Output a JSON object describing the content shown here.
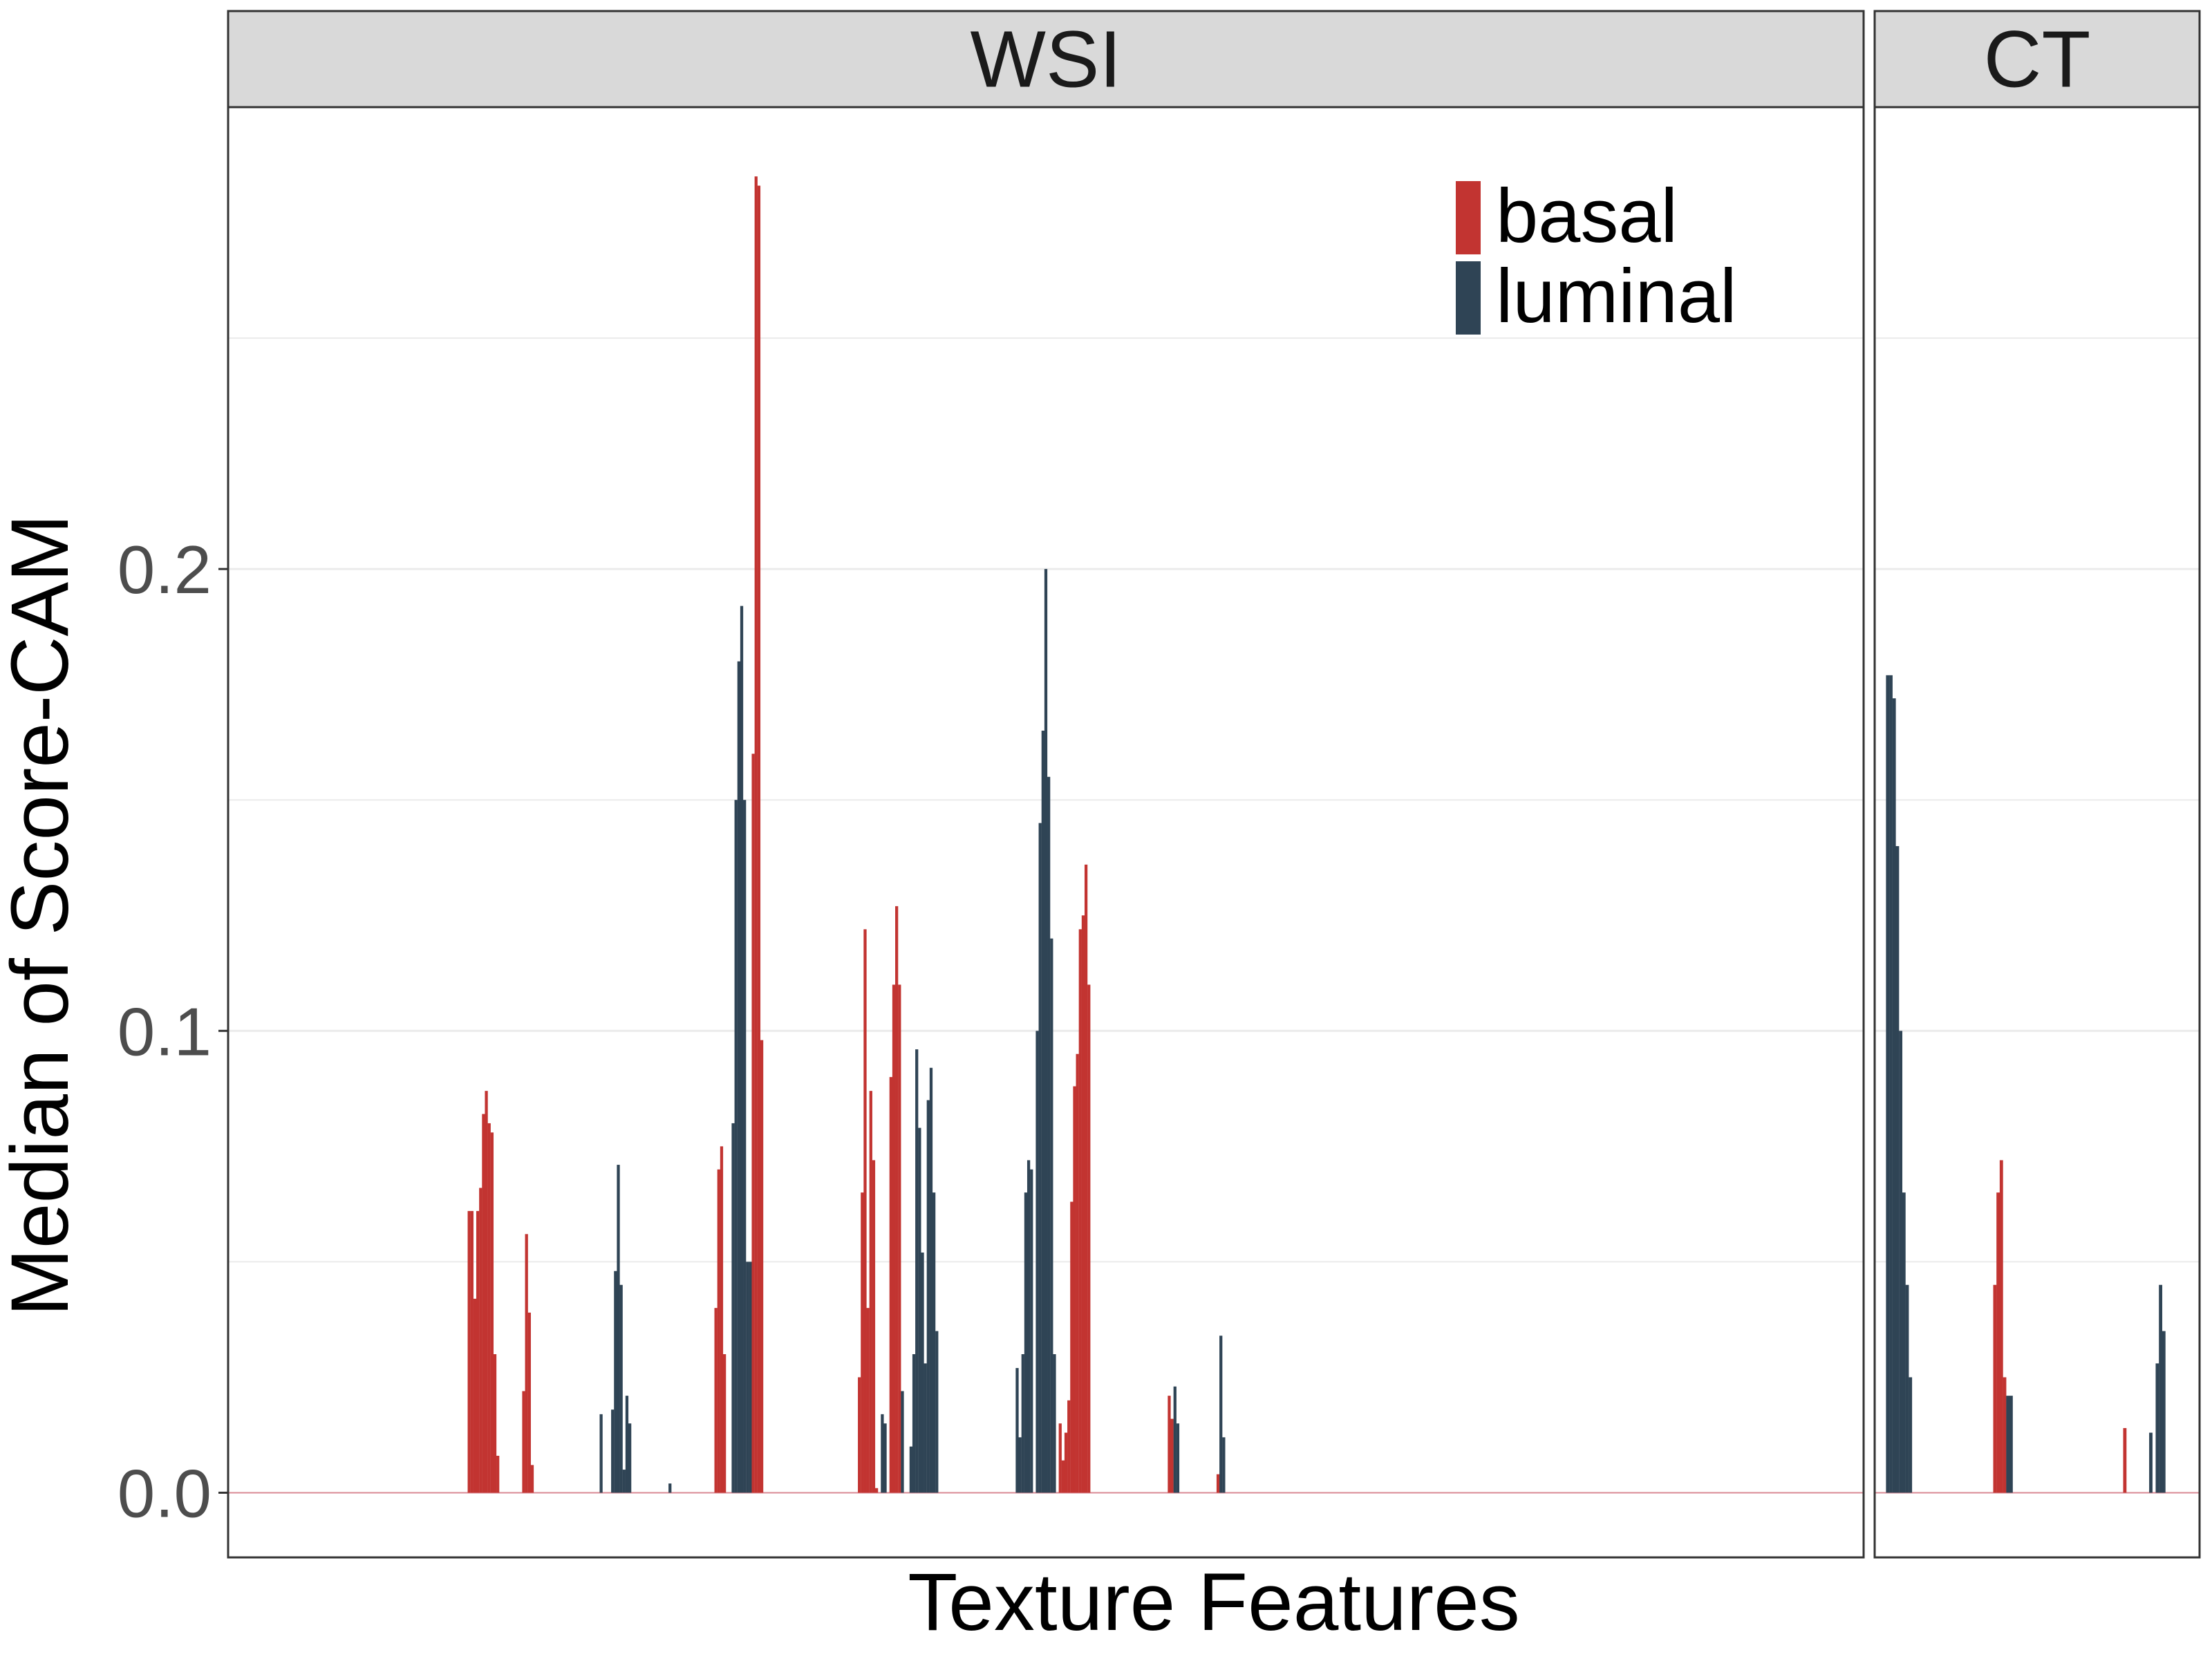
{
  "chart_data": {
    "type": "bar",
    "facets": [
      {
        "name": "WSI",
        "x_range": [
          0,
          570
        ],
        "bars": [
          {
            "x": 84,
            "v": 0.061,
            "s": "basal"
          },
          {
            "x": 85,
            "v": 0.061,
            "s": "basal"
          },
          {
            "x": 86,
            "v": 0.042,
            "s": "basal"
          },
          {
            "x": 87,
            "v": 0.061,
            "s": "basal"
          },
          {
            "x": 88,
            "v": 0.066,
            "s": "basal"
          },
          {
            "x": 89,
            "v": 0.082,
            "s": "basal"
          },
          {
            "x": 90,
            "v": 0.087,
            "s": "basal"
          },
          {
            "x": 91,
            "v": 0.08,
            "s": "basal"
          },
          {
            "x": 92,
            "v": 0.078,
            "s": "basal"
          },
          {
            "x": 93,
            "v": 0.03,
            "s": "basal"
          },
          {
            "x": 94,
            "v": 0.008,
            "s": "basal"
          },
          {
            "x": 103,
            "v": 0.022,
            "s": "basal"
          },
          {
            "x": 104,
            "v": 0.056,
            "s": "basal"
          },
          {
            "x": 105,
            "v": 0.039,
            "s": "basal"
          },
          {
            "x": 106,
            "v": 0.006,
            "s": "basal"
          },
          {
            "x": 130,
            "v": 0.017,
            "s": "luminal"
          },
          {
            "x": 134,
            "v": 0.018,
            "s": "luminal"
          },
          {
            "x": 135,
            "v": 0.048,
            "s": "luminal"
          },
          {
            "x": 136,
            "v": 0.071,
            "s": "luminal"
          },
          {
            "x": 137,
            "v": 0.045,
            "s": "luminal"
          },
          {
            "x": 138,
            "v": 0.005,
            "s": "luminal"
          },
          {
            "x": 139,
            "v": 0.021,
            "s": "luminal"
          },
          {
            "x": 140,
            "v": 0.015,
            "s": "luminal"
          },
          {
            "x": 154,
            "v": 0.002,
            "s": "luminal"
          },
          {
            "x": 170,
            "v": 0.04,
            "s": "basal"
          },
          {
            "x": 171,
            "v": 0.07,
            "s": "basal"
          },
          {
            "x": 172,
            "v": 0.075,
            "s": "basal"
          },
          {
            "x": 173,
            "v": 0.03,
            "s": "basal"
          },
          {
            "x": 176,
            "v": 0.08,
            "s": "luminal"
          },
          {
            "x": 177,
            "v": 0.15,
            "s": "luminal"
          },
          {
            "x": 178,
            "v": 0.18,
            "s": "luminal"
          },
          {
            "x": 179,
            "v": 0.192,
            "s": "luminal"
          },
          {
            "x": 180,
            "v": 0.15,
            "s": "luminal"
          },
          {
            "x": 181,
            "v": 0.05,
            "s": "luminal"
          },
          {
            "x": 182,
            "v": 0.05,
            "s": "luminal"
          },
          {
            "x": 183,
            "v": 0.16,
            "s": "basal"
          },
          {
            "x": 184,
            "v": 0.285,
            "s": "basal"
          },
          {
            "x": 185,
            "v": 0.283,
            "s": "basal"
          },
          {
            "x": 186,
            "v": 0.098,
            "s": "basal"
          },
          {
            "x": 220,
            "v": 0.025,
            "s": "basal"
          },
          {
            "x": 221,
            "v": 0.065,
            "s": "basal"
          },
          {
            "x": 222,
            "v": 0.122,
            "s": "basal"
          },
          {
            "x": 223,
            "v": 0.04,
            "s": "basal"
          },
          {
            "x": 224,
            "v": 0.087,
            "s": "basal"
          },
          {
            "x": 225,
            "v": 0.072,
            "s": "basal"
          },
          {
            "x": 226,
            "v": 0.001,
            "s": "basal"
          },
          {
            "x": 228,
            "v": 0.017,
            "s": "luminal"
          },
          {
            "x": 229,
            "v": 0.015,
            "s": "luminal"
          },
          {
            "x": 231,
            "v": 0.09,
            "s": "basal"
          },
          {
            "x": 232,
            "v": 0.11,
            "s": "basal"
          },
          {
            "x": 233,
            "v": 0.127,
            "s": "basal"
          },
          {
            "x": 234,
            "v": 0.11,
            "s": "basal"
          },
          {
            "x": 235,
            "v": 0.022,
            "s": "luminal"
          },
          {
            "x": 238,
            "v": 0.01,
            "s": "luminal"
          },
          {
            "x": 239,
            "v": 0.03,
            "s": "luminal"
          },
          {
            "x": 240,
            "v": 0.096,
            "s": "luminal"
          },
          {
            "x": 241,
            "v": 0.079,
            "s": "luminal"
          },
          {
            "x": 242,
            "v": 0.052,
            "s": "luminal"
          },
          {
            "x": 243,
            "v": 0.028,
            "s": "luminal"
          },
          {
            "x": 244,
            "v": 0.085,
            "s": "luminal"
          },
          {
            "x": 245,
            "v": 0.092,
            "s": "luminal"
          },
          {
            "x": 246,
            "v": 0.065,
            "s": "luminal"
          },
          {
            "x": 247,
            "v": 0.035,
            "s": "luminal"
          },
          {
            "x": 275,
            "v": 0.027,
            "s": "luminal"
          },
          {
            "x": 276,
            "v": 0.012,
            "s": "luminal"
          },
          {
            "x": 277,
            "v": 0.03,
            "s": "luminal"
          },
          {
            "x": 278,
            "v": 0.065,
            "s": "luminal"
          },
          {
            "x": 279,
            "v": 0.072,
            "s": "luminal"
          },
          {
            "x": 280,
            "v": 0.07,
            "s": "luminal"
          },
          {
            "x": 282,
            "v": 0.1,
            "s": "luminal"
          },
          {
            "x": 283,
            "v": 0.145,
            "s": "luminal"
          },
          {
            "x": 284,
            "v": 0.165,
            "s": "luminal"
          },
          {
            "x": 285,
            "v": 0.2,
            "s": "luminal"
          },
          {
            "x": 286,
            "v": 0.155,
            "s": "luminal"
          },
          {
            "x": 287,
            "v": 0.12,
            "s": "luminal"
          },
          {
            "x": 288,
            "v": 0.03,
            "s": "luminal"
          },
          {
            "x": 290,
            "v": 0.015,
            "s": "basal"
          },
          {
            "x": 291,
            "v": 0.007,
            "s": "basal"
          },
          {
            "x": 292,
            "v": 0.013,
            "s": "basal"
          },
          {
            "x": 293,
            "v": 0.02,
            "s": "basal"
          },
          {
            "x": 294,
            "v": 0.063,
            "s": "basal"
          },
          {
            "x": 295,
            "v": 0.088,
            "s": "basal"
          },
          {
            "x": 296,
            "v": 0.095,
            "s": "basal"
          },
          {
            "x": 297,
            "v": 0.122,
            "s": "basal"
          },
          {
            "x": 298,
            "v": 0.125,
            "s": "basal"
          },
          {
            "x": 299,
            "v": 0.136,
            "s": "basal"
          },
          {
            "x": 300,
            "v": 0.11,
            "s": "basal"
          },
          {
            "x": 328,
            "v": 0.021,
            "s": "basal"
          },
          {
            "x": 329,
            "v": 0.016,
            "s": "basal"
          },
          {
            "x": 330,
            "v": 0.023,
            "s": "luminal"
          },
          {
            "x": 331,
            "v": 0.015,
            "s": "luminal"
          },
          {
            "x": 345,
            "v": 0.004,
            "s": "basal"
          },
          {
            "x": 346,
            "v": 0.034,
            "s": "luminal"
          },
          {
            "x": 347,
            "v": 0.012,
            "s": "luminal"
          }
        ]
      },
      {
        "name": "CT",
        "x_range": [
          0,
          100
        ],
        "bars": [
          {
            "x": 4,
            "v": 0.177,
            "s": "luminal"
          },
          {
            "x": 5,
            "v": 0.177,
            "s": "luminal"
          },
          {
            "x": 6,
            "v": 0.172,
            "s": "luminal"
          },
          {
            "x": 7,
            "v": 0.14,
            "s": "luminal"
          },
          {
            "x": 8,
            "v": 0.1,
            "s": "luminal"
          },
          {
            "x": 9,
            "v": 0.065,
            "s": "luminal"
          },
          {
            "x": 10,
            "v": 0.045,
            "s": "luminal"
          },
          {
            "x": 11,
            "v": 0.025,
            "s": "luminal"
          },
          {
            "x": 37,
            "v": 0.045,
            "s": "basal"
          },
          {
            "x": 38,
            "v": 0.065,
            "s": "basal"
          },
          {
            "x": 39,
            "v": 0.072,
            "s": "basal"
          },
          {
            "x": 40,
            "v": 0.025,
            "s": "basal"
          },
          {
            "x": 41,
            "v": 0.021,
            "s": "luminal"
          },
          {
            "x": 42,
            "v": 0.021,
            "s": "luminal"
          },
          {
            "x": 77,
            "v": 0.014,
            "s": "basal"
          },
          {
            "x": 85,
            "v": 0.013,
            "s": "luminal"
          },
          {
            "x": 87,
            "v": 0.028,
            "s": "luminal"
          },
          {
            "x": 88,
            "v": 0.045,
            "s": "luminal"
          },
          {
            "x": 89,
            "v": 0.035,
            "s": "luminal"
          }
        ]
      }
    ],
    "series": [
      {
        "name": "basal",
        "color": "#c23431"
      },
      {
        "name": "luminal",
        "color": "#2f4455"
      }
    ],
    "ylim": [
      -0.014,
      0.3
    ],
    "y_ticks": [
      0.0,
      0.1,
      0.2
    ],
    "y_tick_labels": [
      "0.0",
      "0.1",
      "0.2"
    ],
    "xlabel": "Texture Features",
    "ylabel": "Median of Score-CAM",
    "legend_position": "top-right",
    "grid": true
  },
  "colors": {
    "strip_background": "#d9d9d9",
    "panel_border": "#333333",
    "grid": "#ebebeb",
    "zero_line": "#d98a94"
  }
}
